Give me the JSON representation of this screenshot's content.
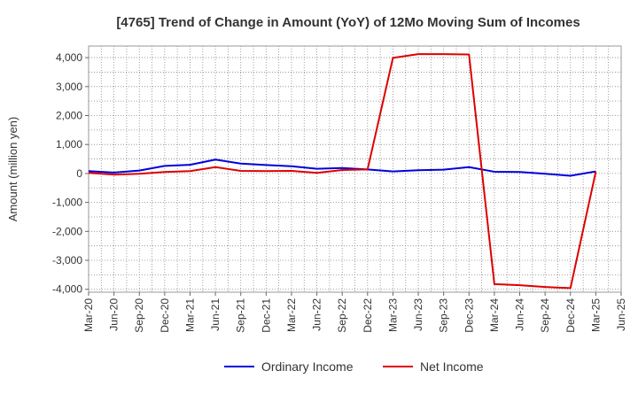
{
  "chart_data": {
    "type": "line",
    "title": "[4765]  Trend of Change in Amount (YoY) of 12Mo Moving Sum of Incomes",
    "xlabel": "",
    "ylabel": "Amount (million yen)",
    "ylim": [
      -4100,
      4400
    ],
    "yticks": [
      4000,
      3000,
      2000,
      1000,
      0,
      -1000,
      -2000,
      -3000,
      -4000
    ],
    "ytick_labels": [
      "4,000",
      "3,000",
      "2,000",
      "1,000",
      "0",
      "-1,000",
      "-2,000",
      "-3,000",
      "-4,000"
    ],
    "categories": [
      "Mar-20",
      "Jun-20",
      "Sep-20",
      "Dec-20",
      "Mar-21",
      "Jun-21",
      "Sep-21",
      "Dec-21",
      "Mar-22",
      "Jun-22",
      "Sep-22",
      "Dec-22",
      "Mar-23",
      "Jun-23",
      "Sep-23",
      "Dec-23",
      "Mar-24",
      "Jun-24",
      "Sep-24",
      "Dec-24",
      "Mar-25",
      "Jun-25"
    ],
    "grid": true,
    "legend_position": "bottom",
    "series": [
      {
        "name": "Ordinary Income",
        "color": "#0000dd",
        "values": [
          80,
          30,
          100,
          260,
          300,
          480,
          340,
          290,
          250,
          160,
          190,
          140,
          70,
          110,
          130,
          220,
          60,
          50,
          -10,
          -80,
          70,
          null
        ]
      },
      {
        "name": "Net Income",
        "color": "#dd0000",
        "values": [
          20,
          -40,
          -10,
          50,
          80,
          220,
          90,
          80,
          90,
          20,
          120,
          140,
          3990,
          4120,
          4120,
          4110,
          -3820,
          -3860,
          -3920,
          -3960,
          60,
          null
        ]
      }
    ]
  }
}
